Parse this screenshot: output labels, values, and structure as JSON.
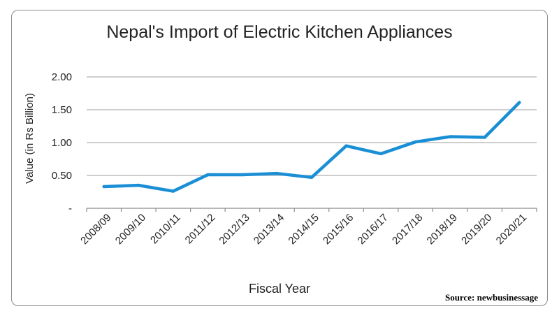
{
  "chart_data": {
    "type": "line",
    "title": "Nepal's Import of Electric Kitchen Appliances",
    "xlabel": "Fiscal Year",
    "ylabel": "Value (in Rs Billion)",
    "categories": [
      "2008/09",
      "2009/10",
      "2010/11",
      "2011/12",
      "2012/13",
      "2013/14",
      "2014/15",
      "2015/16",
      "2016/17",
      "2017/18",
      "2018/19",
      "2019/20",
      "2020/21"
    ],
    "series": [
      {
        "name": "Value (in Rs Billion)",
        "values": [
          0.33,
          0.35,
          0.26,
          0.51,
          0.51,
          0.53,
          0.47,
          0.95,
          0.83,
          1.01,
          1.09,
          1.08,
          1.61
        ]
      }
    ],
    "ylim": [
      0,
      2
    ],
    "yticks": [
      {
        "value": 0,
        "label": "-"
      },
      {
        "value": 0.5,
        "label": "0.50"
      },
      {
        "value": 1.0,
        "label": "1.00"
      },
      {
        "value": 1.5,
        "label": "1.50"
      },
      {
        "value": 2.0,
        "label": "2.00"
      }
    ],
    "grid": true,
    "line_color": "#1a8fd6",
    "grid_color": "#b0b0b0"
  },
  "source": "Source: newbusinessage"
}
